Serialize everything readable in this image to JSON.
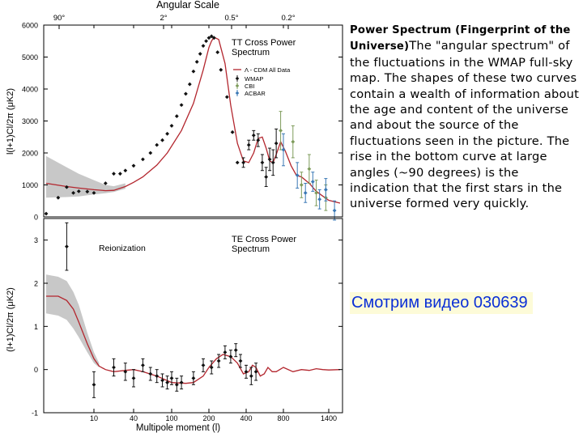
{
  "description": {
    "title": "Power Spectrum (Fingerprint of the Universe)",
    "body": "The \"angular spectrum\" of the fluctuations in the WMAP full-sky map. The shapes of these two curves contain a wealth of information about the age and content of the universe and about the source of the fluctuations seen in the picture. The rise in the bottom curve at large angles (~90 degrees) is the indication that the first stars in the universe formed very quickly."
  },
  "video_link": "Смотрим видео 030639",
  "colors": {
    "model_curve": "#b3262e",
    "model_band": "#c8c8c8",
    "wmap": "#111111",
    "cbi": "#7d9b5a",
    "acbar": "#3a78b5",
    "link_text": "#0a2fd6",
    "link_bg": "#fdfbd8"
  },
  "chart_data": [
    {
      "type": "scatter",
      "panel": "top",
      "title": "TT Cross Power Spectrum",
      "top_axis_label": "Angular Scale",
      "top_ticks": [
        {
          "label": "90°",
          "ell": 2
        },
        {
          "label": "2°",
          "ell": 90
        },
        {
          "label": "0.5°",
          "ell": 360
        },
        {
          "label": "0.2°",
          "ell": 900
        }
      ],
      "xscale": "angular spectrum (non-linear multipole axis)",
      "xlabel": "",
      "ylabel": "l(l+1)Cl/2π (μK2)",
      "ylim": [
        0,
        6000
      ],
      "yticks": [
        0,
        1000,
        2000,
        3000,
        4000,
        5000,
        6000
      ],
      "legend": {
        "placement": "right",
        "entries": [
          "Λ - CDM All Data",
          "WMAP",
          "CBI",
          "ACBAR"
        ]
      },
      "model": {
        "name": "Λ - CDM All Data",
        "x": [
          2,
          4,
          6,
          10,
          15,
          20,
          30,
          40,
          50,
          70,
          90,
          120,
          150,
          180,
          200,
          210,
          220,
          240,
          270,
          300,
          340,
          380,
          420,
          460,
          500,
          540,
          580,
          620,
          660,
          700,
          760,
          820,
          880,
          940,
          1000,
          1100,
          1200,
          1300,
          1400,
          1500
        ],
        "y": [
          1050,
          950,
          900,
          850,
          820,
          830,
          950,
          1080,
          1250,
          1620,
          2000,
          2700,
          3550,
          4600,
          5300,
          5500,
          5620,
          5550,
          4800,
          3500,
          2300,
          1750,
          1700,
          2000,
          2450,
          2500,
          2150,
          1750,
          1700,
          1950,
          2350,
          2050,
          1600,
          1300,
          1250,
          1050,
          800,
          650,
          520,
          430
        ],
        "band": {
          "x": [
            2,
            4,
            6,
            10,
            15,
            20,
            30
          ],
          "lower": [
            600,
            620,
            640,
            700,
            740,
            780,
            880
          ],
          "upper": [
            1900,
            1550,
            1350,
            1150,
            1000,
            960,
            1050
          ]
        }
      },
      "series": [
        {
          "name": "WMAP",
          "x": [
            2,
            3,
            4,
            5,
            6,
            8,
            10,
            15,
            20,
            25,
            30,
            40,
            50,
            60,
            70,
            80,
            90,
            100,
            110,
            120,
            130,
            140,
            150,
            160,
            170,
            180,
            190,
            200,
            210,
            220,
            235,
            250,
            280,
            310,
            340,
            380,
            420,
            460,
            500,
            540,
            580,
            620,
            660,
            700
          ],
          "y": [
            100,
            600,
            930,
            750,
            800,
            790,
            750,
            1050,
            1350,
            1350,
            1450,
            1600,
            1800,
            2000,
            2250,
            2400,
            2600,
            2850,
            3150,
            3500,
            3850,
            4150,
            4550,
            4850,
            5100,
            5350,
            5500,
            5600,
            5650,
            5600,
            5150,
            4600,
            3750,
            2650,
            1700,
            1700,
            2250,
            2550,
            2400,
            1700,
            1250,
            1800,
            1700,
            2300
          ],
          "err": [
            0,
            0,
            0,
            0,
            0,
            0,
            0,
            0,
            0,
            0,
            0,
            0,
            0,
            0,
            0,
            0,
            0,
            0,
            0,
            0,
            0,
            0,
            0,
            0,
            0,
            0,
            0,
            0,
            0,
            0,
            0,
            0,
            0,
            0,
            0,
            150,
            150,
            150,
            200,
            250,
            300,
            350,
            400,
            450
          ]
        },
        {
          "name": "CBI",
          "x": [
            760,
            900,
            1000,
            1100,
            1200,
            1350
          ],
          "y": [
            2700,
            2350,
            1000,
            1500,
            750,
            600
          ],
          "err": [
            600,
            500,
            400,
            450,
            400,
            400
          ]
        },
        {
          "name": "ACBAR",
          "x": [
            800,
            950,
            1050,
            1150,
            1250,
            1350,
            1450
          ],
          "y": [
            2100,
            1300,
            750,
            1100,
            550,
            850,
            200
          ],
          "err": [
            500,
            400,
            300,
            300,
            300,
            350,
            300
          ]
        }
      ]
    },
    {
      "type": "scatter",
      "panel": "bottom",
      "title": "TE Cross Power Spectrum",
      "annotation": "Reionization",
      "xlabel": "Multipole moment (l)",
      "ylabel": "(l+1)Cl/2π (μK2)",
      "xticks": [
        "10",
        "40",
        "100",
        "200",
        "400",
        "800",
        "1400"
      ],
      "xtick_values": [
        10,
        40,
        100,
        200,
        400,
        800,
        1400
      ],
      "ylim": [
        -1,
        3.5
      ],
      "yticks": [
        -1,
        0,
        1,
        2,
        3
      ],
      "model": {
        "x": [
          2,
          3,
          4,
          5,
          6,
          8,
          10,
          12,
          15,
          20,
          30,
          40,
          50,
          70,
          100,
          130,
          150,
          180,
          200,
          230,
          260,
          300,
          340,
          380,
          420,
          450,
          480,
          520,
          560,
          600,
          650,
          700,
          800,
          900,
          1000,
          1100,
          1200,
          1300,
          1400,
          1500
        ],
        "y": [
          1.7,
          1.7,
          1.6,
          1.4,
          1.1,
          0.6,
          0.25,
          0.08,
          0.0,
          -0.05,
          -0.02,
          0.0,
          -0.05,
          -0.15,
          -0.3,
          -0.32,
          -0.3,
          -0.15,
          0.05,
          0.25,
          0.35,
          0.3,
          0.15,
          -0.1,
          -0.05,
          0.1,
          0.05,
          -0.15,
          -0.1,
          0.05,
          -0.05,
          -0.05,
          0.05,
          -0.05,
          0.0,
          -0.02,
          0.02,
          0.0,
          -0.01,
          0.0
        ],
        "band": {
          "x": [
            2,
            3,
            4,
            5,
            6,
            8,
            10,
            12
          ],
          "lower": [
            1.3,
            1.25,
            1.15,
            0.95,
            0.75,
            0.4,
            0.15,
            0.05
          ],
          "upper": [
            2.2,
            2.15,
            2.05,
            1.8,
            1.5,
            0.85,
            0.4,
            0.15
          ]
        }
      },
      "series": [
        {
          "name": "WMAP",
          "x": [
            4,
            10,
            20,
            30,
            40,
            50,
            60,
            70,
            80,
            90,
            100,
            110,
            120,
            150,
            180,
            210,
            240,
            270,
            300,
            330,
            360,
            400,
            440,
            480
          ],
          "y": [
            2.85,
            -0.35,
            0.05,
            -0.05,
            -0.2,
            0.1,
            -0.1,
            -0.15,
            -0.25,
            -0.3,
            -0.2,
            -0.35,
            -0.3,
            -0.2,
            0.1,
            0.05,
            0.2,
            0.4,
            0.3,
            0.45,
            0.2,
            -0.05,
            -0.15,
            -0.05
          ],
          "err": [
            0.55,
            0.3,
            0.2,
            0.2,
            0.2,
            0.15,
            0.15,
            0.15,
            0.15,
            0.15,
            0.15,
            0.15,
            0.15,
            0.15,
            0.15,
            0.15,
            0.15,
            0.15,
            0.15,
            0.15,
            0.15,
            0.15,
            0.2,
            0.2
          ]
        }
      ]
    }
  ]
}
